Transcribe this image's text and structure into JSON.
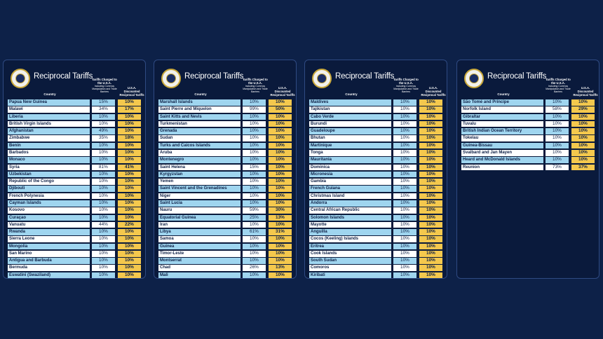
{
  "board_title": "Reciprocal Tariffs",
  "col_country": "Country",
  "col_charged": "Tariffs Charged to the U.S.A.",
  "col_charged_sub": "Including Currency Manipulation and Trade Barriers",
  "col_discounted": "U.S.A. Discounted Reciprocal Tariffs",
  "boards": [
    {
      "rows": [
        {
          "country": "Papua New Guinea",
          "charged": "15%",
          "discounted": "10%"
        },
        {
          "country": "Malawi",
          "charged": "34%",
          "discounted": "17%"
        },
        {
          "country": "Liberia",
          "charged": "10%",
          "discounted": "10%"
        },
        {
          "country": "British Virgin Islands",
          "charged": "10%",
          "discounted": "10%"
        },
        {
          "country": "Afghanistan",
          "charged": "49%",
          "discounted": "10%"
        },
        {
          "country": "Zimbabwe",
          "charged": "35%",
          "discounted": "18%"
        },
        {
          "country": "Benin",
          "charged": "10%",
          "discounted": "10%"
        },
        {
          "country": "Barbados",
          "charged": "10%",
          "discounted": "10%"
        },
        {
          "country": "Monaco",
          "charged": "10%",
          "discounted": "10%"
        },
        {
          "country": "Syria",
          "charged": "81%",
          "discounted": "41%"
        },
        {
          "country": "Uzbekistan",
          "charged": "10%",
          "discounted": "10%"
        },
        {
          "country": "Republic of the Congo",
          "charged": "10%",
          "discounted": "10%"
        },
        {
          "country": "Djibouti",
          "charged": "10%",
          "discounted": "10%"
        },
        {
          "country": "French Polynesia",
          "charged": "10%",
          "discounted": "10%"
        },
        {
          "country": "Cayman Islands",
          "charged": "10%",
          "discounted": "10%"
        },
        {
          "country": "Kosovo",
          "charged": "10%",
          "discounted": "10%"
        },
        {
          "country": "Curaçao",
          "charged": "10%",
          "discounted": "10%"
        },
        {
          "country": "Vanuatu",
          "charged": "44%",
          "discounted": "22%"
        },
        {
          "country": "Rwanda",
          "charged": "10%",
          "discounted": "10%"
        },
        {
          "country": "Sierra Leone",
          "charged": "10%",
          "discounted": "10%"
        },
        {
          "country": "Mongolia",
          "charged": "10%",
          "discounted": "10%"
        },
        {
          "country": "San Marino",
          "charged": "10%",
          "discounted": "10%"
        },
        {
          "country": "Antigua and Barbuda",
          "charged": "10%",
          "discounted": "10%"
        },
        {
          "country": "Bermuda",
          "charged": "10%",
          "discounted": "10%"
        },
        {
          "country": "Eswatini (Swaziland)",
          "charged": "10%",
          "discounted": "10%"
        }
      ]
    },
    {
      "rows": [
        {
          "country": "Marshall Islands",
          "charged": "10%",
          "discounted": "10%"
        },
        {
          "country": "Saint Pierre and Miquelon",
          "charged": "99%",
          "discounted": "50%"
        },
        {
          "country": "Saint Kitts and Nevis",
          "charged": "10%",
          "discounted": "10%"
        },
        {
          "country": "Turkmenistan",
          "charged": "10%",
          "discounted": "10%"
        },
        {
          "country": "Grenada",
          "charged": "10%",
          "discounted": "10%"
        },
        {
          "country": "Sudan",
          "charged": "10%",
          "discounted": "10%"
        },
        {
          "country": "Turks and Caicos Islands",
          "charged": "10%",
          "discounted": "10%"
        },
        {
          "country": "Aruba",
          "charged": "10%",
          "discounted": "10%"
        },
        {
          "country": "Montenegro",
          "charged": "10%",
          "discounted": "10%"
        },
        {
          "country": "Saint Helena",
          "charged": "15%",
          "discounted": "10%"
        },
        {
          "country": "Kyrgyzstan",
          "charged": "10%",
          "discounted": "10%"
        },
        {
          "country": "Yemen",
          "charged": "10%",
          "discounted": "10%"
        },
        {
          "country": "Saint Vincent and the Grenadines",
          "charged": "10%",
          "discounted": "10%"
        },
        {
          "country": "Niger",
          "charged": "10%",
          "discounted": "10%"
        },
        {
          "country": "Saint Lucia",
          "charged": "10%",
          "discounted": "10%"
        },
        {
          "country": "Nauru",
          "charged": "59%",
          "discounted": "30%"
        },
        {
          "country": "Equatorial Guinea",
          "charged": "25%",
          "discounted": "13%"
        },
        {
          "country": "Iran",
          "charged": "10%",
          "discounted": "10%"
        },
        {
          "country": "Libya",
          "charged": "61%",
          "discounted": "31%"
        },
        {
          "country": "Samoa",
          "charged": "10%",
          "discounted": "10%"
        },
        {
          "country": "Guinea",
          "charged": "10%",
          "discounted": "10%"
        },
        {
          "country": "Timor-Leste",
          "charged": "10%",
          "discounted": "10%"
        },
        {
          "country": "Montserrat",
          "charged": "10%",
          "discounted": "10%"
        },
        {
          "country": "Chad",
          "charged": "26%",
          "discounted": "13%"
        },
        {
          "country": "Mali",
          "charged": "10%",
          "discounted": "10%"
        }
      ]
    },
    {
      "rows": [
        {
          "country": "Maldives",
          "charged": "10%",
          "discounted": "10%"
        },
        {
          "country": "Tajikistan",
          "charged": "10%",
          "discounted": "10%"
        },
        {
          "country": "Cabo Verde",
          "charged": "10%",
          "discounted": "10%"
        },
        {
          "country": "Burundi",
          "charged": "10%",
          "discounted": "10%"
        },
        {
          "country": "Guadeloupe",
          "charged": "10%",
          "discounted": "10%"
        },
        {
          "country": "Bhutan",
          "charged": "10%",
          "discounted": "10%"
        },
        {
          "country": "Martinique",
          "charged": "10%",
          "discounted": "10%"
        },
        {
          "country": "Tonga",
          "charged": "10%",
          "discounted": "10%"
        },
        {
          "country": "Mauritania",
          "charged": "10%",
          "discounted": "10%"
        },
        {
          "country": "Dominica",
          "charged": "10%",
          "discounted": "10%"
        },
        {
          "country": "Micronesia",
          "charged": "10%",
          "discounted": "10%"
        },
        {
          "country": "Gambia",
          "charged": "10%",
          "discounted": "10%"
        },
        {
          "country": "French Guiana",
          "charged": "10%",
          "discounted": "10%"
        },
        {
          "country": "Christmas Island",
          "charged": "10%",
          "discounted": "10%"
        },
        {
          "country": "Andorra",
          "charged": "10%",
          "discounted": "10%"
        },
        {
          "country": "Central African Republic",
          "charged": "10%",
          "discounted": "10%"
        },
        {
          "country": "Solomon Islands",
          "charged": "10%",
          "discounted": "10%"
        },
        {
          "country": "Mayotte",
          "charged": "10%",
          "discounted": "10%"
        },
        {
          "country": "Anguilla",
          "charged": "10%",
          "discounted": "10%"
        },
        {
          "country": "Cocos (Keeling) Islands",
          "charged": "10%",
          "discounted": "10%"
        },
        {
          "country": "Eritrea",
          "charged": "10%",
          "discounted": "10%"
        },
        {
          "country": "Cook Islands",
          "charged": "10%",
          "discounted": "10%"
        },
        {
          "country": "South Sudan",
          "charged": "10%",
          "discounted": "10%"
        },
        {
          "country": "Comoros",
          "charged": "10%",
          "discounted": "10%"
        },
        {
          "country": "Kiribati",
          "charged": "10%",
          "discounted": "10%"
        }
      ]
    },
    {
      "rows": [
        {
          "country": "São Tomé and Príncipe",
          "charged": "10%",
          "discounted": "10%"
        },
        {
          "country": "Norfolk Island",
          "charged": "58%",
          "discounted": "29%"
        },
        {
          "country": "Gibraltar",
          "charged": "10%",
          "discounted": "10%"
        },
        {
          "country": "Tuvalu",
          "charged": "10%",
          "discounted": "10%"
        },
        {
          "country": "British Indian Ocean Territory",
          "charged": "10%",
          "discounted": "10%"
        },
        {
          "country": "Tokelau",
          "charged": "10%",
          "discounted": "10%"
        },
        {
          "country": "Guinea-Bissau",
          "charged": "10%",
          "discounted": "10%"
        },
        {
          "country": "Svalbard and Jan Mayen",
          "charged": "10%",
          "discounted": "10%"
        },
        {
          "country": "Heard and McDonald Islands",
          "charged": "10%",
          "discounted": "10%"
        },
        {
          "country": "Reunion",
          "charged": "73%",
          "discounted": "37%"
        }
      ]
    }
  ]
}
